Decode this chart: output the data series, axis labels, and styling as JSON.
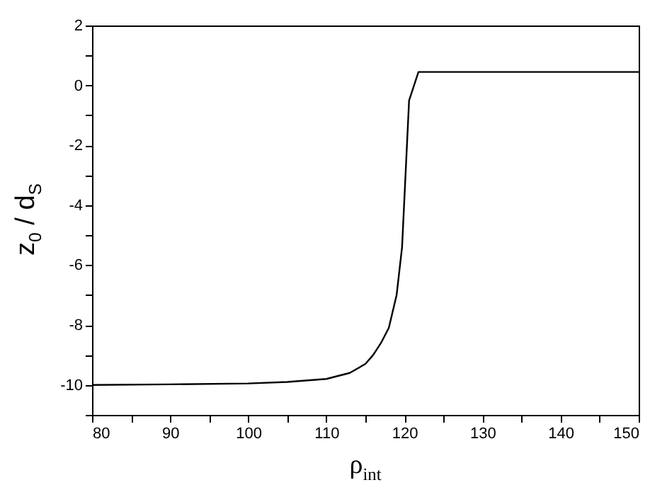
{
  "chart_data": {
    "type": "line",
    "xlabel": "ρ$_{int}$",
    "ylabel": "z$_{0}$ / d$_{S}$",
    "x": [
      80,
      90,
      100,
      105,
      110,
      113,
      115,
      116,
      117,
      118,
      119,
      119.7,
      120.6,
      121.8,
      150
    ],
    "series": [
      {
        "color": "#000000",
        "values": [
          -10,
          -9.98,
          -9.95,
          -9.9,
          -9.8,
          -9.6,
          -9.3,
          -9.0,
          -8.6,
          -8.1,
          -7.0,
          -5.4,
          -0.5,
          0.45,
          0.45
        ]
      }
    ],
    "xlim": [
      80,
      150
    ],
    "ylim": [
      -11,
      2
    ],
    "xticks": [
      80,
      {
        "value": 85,
        "label": null
      },
      90,
      {
        "value": 95,
        "label": null
      },
      100,
      {
        "value": 105,
        "label": null
      },
      110,
      {
        "value": 115,
        "label": null
      },
      120,
      {
        "value": 125,
        "label": null
      },
      130,
      {
        "value": 135,
        "label": null
      },
      140,
      {
        "value": 145,
        "label": null
      },
      150
    ],
    "yticks": [
      {
        "value": -11,
        "label": null
      },
      -10,
      {
        "value": -9,
        "label": null
      },
      -8,
      {
        "value": -7,
        "label": null
      },
      -6,
      {
        "value": -5,
        "label": null
      },
      -4,
      {
        "value": -3,
        "label": null
      },
      -2,
      {
        "value": -1,
        "label": null
      },
      0,
      {
        "value": 1,
        "label": null
      },
      2
    ],
    "grid": false,
    "marker": "none",
    "line_style": "solid"
  }
}
